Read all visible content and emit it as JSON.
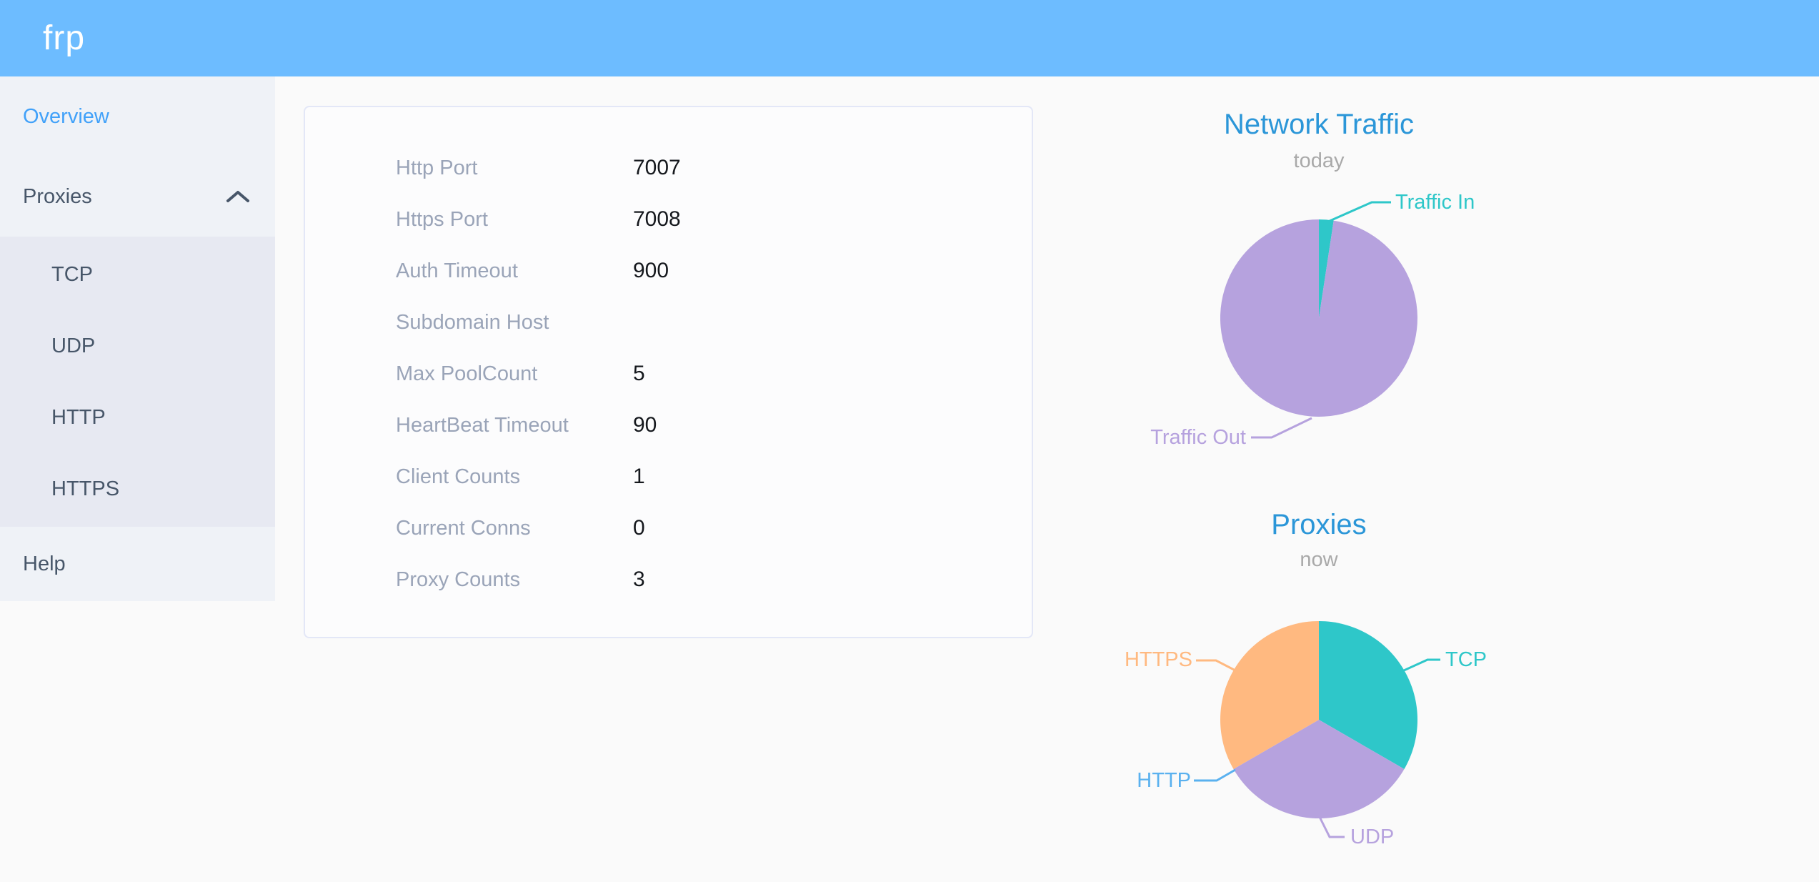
{
  "header": {
    "logo": "frp",
    "bg_color": "#6dbcff"
  },
  "sidebar": {
    "items": [
      {
        "label": "Overview",
        "active": true
      },
      {
        "label": "Proxies",
        "expanded": true
      },
      {
        "label": "TCP"
      },
      {
        "label": "UDP"
      },
      {
        "label": "HTTP"
      },
      {
        "label": "HTTPS"
      },
      {
        "label": "Help"
      }
    ]
  },
  "overview_card": {
    "rows": [
      {
        "label": "Http Port",
        "value": "7007"
      },
      {
        "label": "Https Port",
        "value": "7008"
      },
      {
        "label": "Auth Timeout",
        "value": "900"
      },
      {
        "label": "Subdomain Host",
        "value": ""
      },
      {
        "label": "Max PoolCount",
        "value": "5"
      },
      {
        "label": "HeartBeat Timeout",
        "value": "90"
      },
      {
        "label": "Client Counts",
        "value": "1"
      },
      {
        "label": "Current Conns",
        "value": "0"
      },
      {
        "label": "Proxy Counts",
        "value": "3"
      }
    ]
  },
  "chart_data": [
    {
      "type": "pie",
      "title": "Network Traffic",
      "subtitle": "today",
      "labels_style": "outside-callout",
      "series": [
        {
          "name": "Traffic In",
          "pct": 2.4,
          "color": "#2ec7c9"
        },
        {
          "name": "Traffic Out",
          "pct": 97.6,
          "color": "#b6a2de"
        }
      ]
    },
    {
      "type": "pie",
      "title": "Proxies",
      "subtitle": "now",
      "labels_style": "outside-callout",
      "series": [
        {
          "name": "TCP",
          "value": 1,
          "pct": 33.33,
          "color": "#2ec7c9"
        },
        {
          "name": "UDP",
          "value": 1,
          "pct": 33.33,
          "color": "#b6a2de"
        },
        {
          "name": "HTTP",
          "value": 0,
          "pct": 0,
          "color": "#5ab1ef"
        },
        {
          "name": "HTTPS",
          "value": 1,
          "pct": 33.33,
          "color": "#ffb980"
        }
      ]
    }
  ],
  "colors": {
    "header_bg": "#6dbcff",
    "sidebar_bg": "#eff2f7",
    "submenu_bg": "#e7e9f2",
    "active_link": "#41a1f9",
    "menu_text": "#475669",
    "chart_title": "#2b96d8",
    "label_gray": "#9aa4b8"
  }
}
